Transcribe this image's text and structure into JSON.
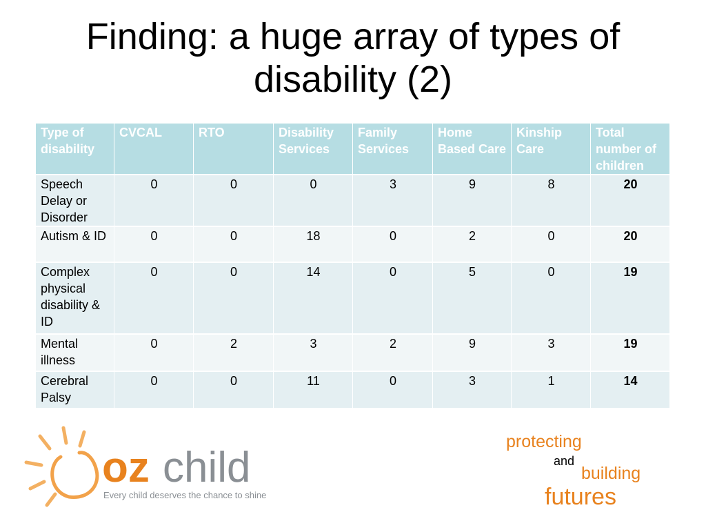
{
  "title": "Finding: a huge array of types of disability (2)",
  "table": {
    "header": [
      "Type of disability",
      "CVCAL",
      "RTO",
      "Disability Services",
      "Family Services",
      "Home Based Care",
      "Kinship Care",
      "Total number of children"
    ],
    "rows": [
      [
        "Speech Delay or Disorder",
        0,
        0,
        0,
        3,
        9,
        8,
        20
      ],
      [
        "Autism & ID",
        0,
        0,
        18,
        0,
        2,
        0,
        20
      ],
      [
        "Complex physical disability & ID",
        0,
        0,
        14,
        0,
        5,
        0,
        19
      ],
      [
        "Mental illness",
        0,
        2,
        3,
        2,
        9,
        3,
        19
      ],
      [
        "Cerebral Palsy",
        0,
        0,
        11,
        0,
        3,
        1,
        14
      ]
    ]
  },
  "logo": {
    "brand_a": "oz",
    "brand_b": "child",
    "tagline": "Every child deserves the chance to shine"
  },
  "slogan": {
    "line1": "protecting",
    "line2": "and",
    "line3": "building",
    "line4": "futures"
  }
}
